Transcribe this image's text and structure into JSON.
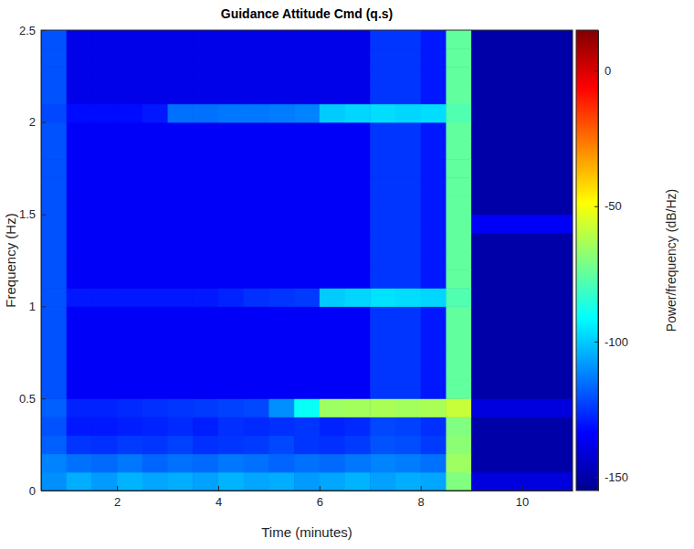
{
  "chart_data": {
    "type": "heatmap",
    "title": "Guidance Attitude Cmd (q.s)",
    "x_label": "Time (minutes)",
    "y_label": "Frequency (Hz)",
    "xlim": [
      0.5,
      11
    ],
    "xticks": [
      2,
      4,
      6,
      8,
      10
    ],
    "ylim": [
      0,
      2.5
    ],
    "yticks": [
      0,
      0.5,
      1,
      1.5,
      2,
      2.5
    ],
    "grid": false,
    "x_bins": [
      0.5,
      1,
      1.5,
      2,
      2.5,
      3,
      3.5,
      4,
      4.5,
      5,
      5.5,
      6,
      6.5,
      7,
      7.5,
      8,
      8.5,
      9,
      9.5,
      10,
      10.5,
      11
    ],
    "y_bins": [
      0,
      0.1,
      0.2,
      0.3,
      0.4,
      0.5,
      0.6,
      0.7,
      0.8,
      0.9,
      1,
      1.1,
      1.2,
      1.3,
      1.4,
      1.5,
      1.6,
      1.7,
      1.8,
      1.9,
      2,
      2.1,
      2.2,
      2.3,
      2.4,
      2.5
    ],
    "cells": [
      [
        -110,
        -105,
        -108,
        -104,
        -106,
        -105,
        -107,
        -104,
        -106,
        -105,
        -108,
        -106,
        -104,
        -107,
        -105,
        -106,
        -70,
        -140,
        -140,
        -140,
        -140
      ],
      [
        -112,
        -115,
        -116,
        -114,
        -117,
        -115,
        -116,
        -114,
        -115,
        -117,
        -115,
        -116,
        -114,
        -112,
        -113,
        -115,
        -65,
        -150,
        -150,
        -150,
        -150
      ],
      [
        -118,
        -125,
        -126,
        -124,
        -125,
        -123,
        -126,
        -125,
        -124,
        -122,
        -125,
        -126,
        -124,
        -120,
        -121,
        -124,
        -68,
        -150,
        -150,
        -150,
        -150
      ],
      [
        -120,
        -130,
        -130,
        -129,
        -128,
        -127,
        -129,
        -126,
        -127,
        -126,
        -125,
        -128,
        -127,
        -122,
        -123,
        -126,
        -70,
        -150,
        -150,
        -150,
        -150
      ],
      [
        -118,
        -128,
        -128,
        -127,
        -126,
        -125,
        -124,
        -123,
        -122,
        -110,
        -90,
        -65,
        -64,
        -63,
        -64,
        -63,
        -58,
        -140,
        -140,
        -140,
        -140
      ],
      [
        -120,
        -135,
        -135,
        -135,
        -135,
        -135,
        -135,
        -135,
        -135,
        -135,
        -135,
        -135,
        -135,
        -125,
        -125,
        -130,
        -75,
        -150,
        -150,
        -150,
        -150
      ],
      [
        -120,
        -135,
        -135,
        -135,
        -135,
        -135,
        -135,
        -135,
        -135,
        -135,
        -135,
        -135,
        -135,
        -125,
        -125,
        -130,
        -75,
        -150,
        -150,
        -150,
        -150
      ],
      [
        -120,
        -135,
        -135,
        -135,
        -135,
        -135,
        -135,
        -135,
        -135,
        -135,
        -135,
        -135,
        -135,
        -125,
        -125,
        -130,
        -75,
        -150,
        -150,
        -150,
        -150
      ],
      [
        -120,
        -135,
        -135,
        -135,
        -135,
        -135,
        -135,
        -135,
        -135,
        -135,
        -135,
        -135,
        -135,
        -125,
        -125,
        -130,
        -75,
        -150,
        -150,
        -150,
        -150
      ],
      [
        -120,
        -135,
        -135,
        -135,
        -135,
        -135,
        -135,
        -135,
        -135,
        -135,
        -135,
        -135,
        -135,
        -125,
        -125,
        -130,
        -75,
        -150,
        -150,
        -150,
        -150
      ],
      [
        -120,
        -130,
        -130,
        -130,
        -130,
        -130,
        -130,
        -128,
        -126,
        -125,
        -124,
        -100,
        -98,
        -96,
        -97,
        -98,
        -78,
        -150,
        -150,
        -150,
        -150
      ],
      [
        -120,
        -135,
        -135,
        -135,
        -135,
        -135,
        -135,
        -135,
        -135,
        -135,
        -135,
        -135,
        -135,
        -125,
        -125,
        -130,
        -75,
        -150,
        -150,
        -150,
        -150
      ],
      [
        -120,
        -135,
        -135,
        -135,
        -135,
        -135,
        -135,
        -135,
        -135,
        -135,
        -135,
        -135,
        -135,
        -125,
        -125,
        -130,
        -75,
        -150,
        -150,
        -150,
        -150
      ],
      [
        -120,
        -135,
        -135,
        -135,
        -135,
        -135,
        -135,
        -135,
        -135,
        -135,
        -135,
        -135,
        -135,
        -125,
        -125,
        -130,
        -75,
        -150,
        -150,
        -150,
        -150
      ],
      [
        -120,
        -135,
        -135,
        -135,
        -135,
        -135,
        -135,
        -135,
        -135,
        -135,
        -135,
        -135,
        -135,
        -125,
        -125,
        -130,
        -75,
        -135,
        -135,
        -135,
        -135
      ],
      [
        -120,
        -135,
        -135,
        -135,
        -135,
        -135,
        -135,
        -135,
        -135,
        -135,
        -135,
        -135,
        -135,
        -125,
        -125,
        -130,
        -75,
        -150,
        -150,
        -150,
        -150
      ],
      [
        -120,
        -135,
        -135,
        -135,
        -135,
        -135,
        -135,
        -135,
        -135,
        -135,
        -135,
        -135,
        -135,
        -125,
        -125,
        -130,
        -75,
        -150,
        -150,
        -150,
        -150
      ],
      [
        -120,
        -135,
        -135,
        -135,
        -135,
        -135,
        -135,
        -135,
        -135,
        -135,
        -135,
        -135,
        -135,
        -125,
        -125,
        -130,
        -75,
        -150,
        -150,
        -150,
        -150
      ],
      [
        -120,
        -135,
        -135,
        -135,
        -135,
        -135,
        -135,
        -135,
        -135,
        -135,
        -135,
        -135,
        -135,
        -125,
        -125,
        -130,
        -75,
        -150,
        -150,
        -150,
        -150
      ],
      [
        -120,
        -135,
        -135,
        -135,
        -135,
        -135,
        -135,
        -135,
        -135,
        -135,
        -135,
        -135,
        -135,
        -125,
        -125,
        -130,
        -75,
        -150,
        -150,
        -150,
        -150
      ],
      [
        -122,
        -132,
        -132,
        -132,
        -130,
        -115,
        -115,
        -114,
        -114,
        -113,
        -112,
        -100,
        -98,
        -97,
        -98,
        -97,
        -78,
        -150,
        -150,
        -150,
        -150
      ],
      [
        -120,
        -138,
        -138,
        -138,
        -138,
        -138,
        -138,
        -138,
        -138,
        -138,
        -138,
        -138,
        -138,
        -125,
        -125,
        -130,
        -75,
        -150,
        -150,
        -150,
        -150
      ],
      [
        -120,
        -138,
        -138,
        -138,
        -138,
        -138,
        -138,
        -138,
        -138,
        -138,
        -138,
        -138,
        -138,
        -125,
        -125,
        -130,
        -75,
        -150,
        -150,
        -150,
        -150
      ],
      [
        -120,
        -138,
        -138,
        -138,
        -138,
        -138,
        -138,
        -138,
        -138,
        -138,
        -138,
        -138,
        -138,
        -125,
        -125,
        -130,
        -75,
        -150,
        -150,
        -150,
        -150
      ],
      [
        -120,
        -138,
        -138,
        -138,
        -138,
        -138,
        -138,
        -138,
        -138,
        -138,
        -138,
        -138,
        -138,
        -125,
        -125,
        -130,
        -75,
        -150,
        -150,
        -150,
        -150
      ]
    ],
    "colorbar": {
      "label": "Power/frequency (dB/Hz)",
      "lim": [
        -155,
        15
      ],
      "ticks": [
        -150,
        -100,
        -50,
        0
      ]
    }
  }
}
